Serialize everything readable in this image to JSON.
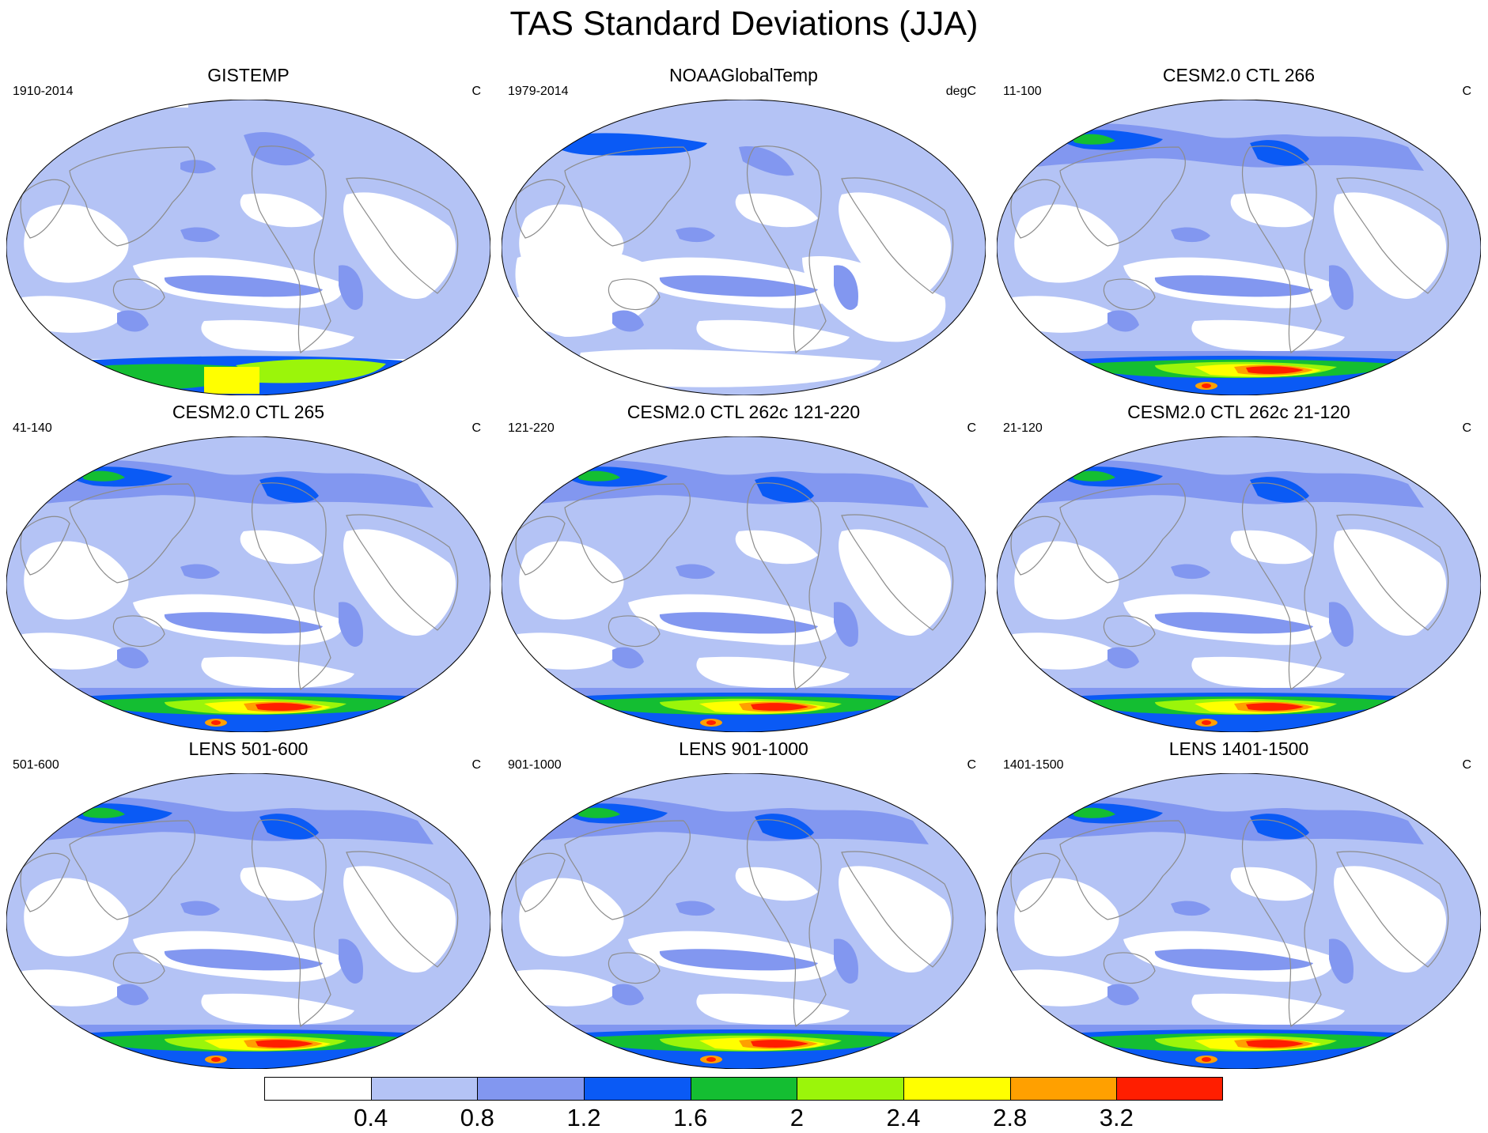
{
  "figure": {
    "title": "TAS Standard Deviations (JJA)"
  },
  "panels": [
    {
      "title": "GISTEMP",
      "period": "1910-2014",
      "units": "C",
      "kind": "obs_gis"
    },
    {
      "title": "NOAAGlobalTemp",
      "period": "1979-2014",
      "units": "degC",
      "kind": "obs_noaa"
    },
    {
      "title": "CESM2.0 CTL 266",
      "period": "11-100",
      "units": "C",
      "kind": "model"
    },
    {
      "title": "CESM2.0 CTL 265",
      "period": "41-140",
      "units": "C",
      "kind": "model"
    },
    {
      "title": "CESM2.0 CTL 262c 121-220",
      "period": "121-220",
      "units": "C",
      "kind": "model"
    },
    {
      "title": "CESM2.0 CTL 262c 21-120",
      "period": "21-120",
      "units": "C",
      "kind": "model"
    },
    {
      "title": "LENS 501-600",
      "period": "501-600",
      "units": "C",
      "kind": "lens"
    },
    {
      "title": "LENS 901-1000",
      "period": "901-1000",
      "units": "C",
      "kind": "lens"
    },
    {
      "title": "LENS 1401-1500",
      "period": "1401-1500",
      "units": "C",
      "kind": "lens"
    }
  ],
  "colorbar": {
    "labels": [
      "0.4",
      "0.8",
      "1.2",
      "1.6",
      "2",
      "2.4",
      "2.8",
      "3.2"
    ],
    "colors": [
      "#ffffff",
      "#b4c3f5",
      "#8297f0",
      "#0a5af5",
      "#14be32",
      "#9bf50a",
      "#ffff00",
      "#ffa000",
      "#ff1e00"
    ]
  }
}
